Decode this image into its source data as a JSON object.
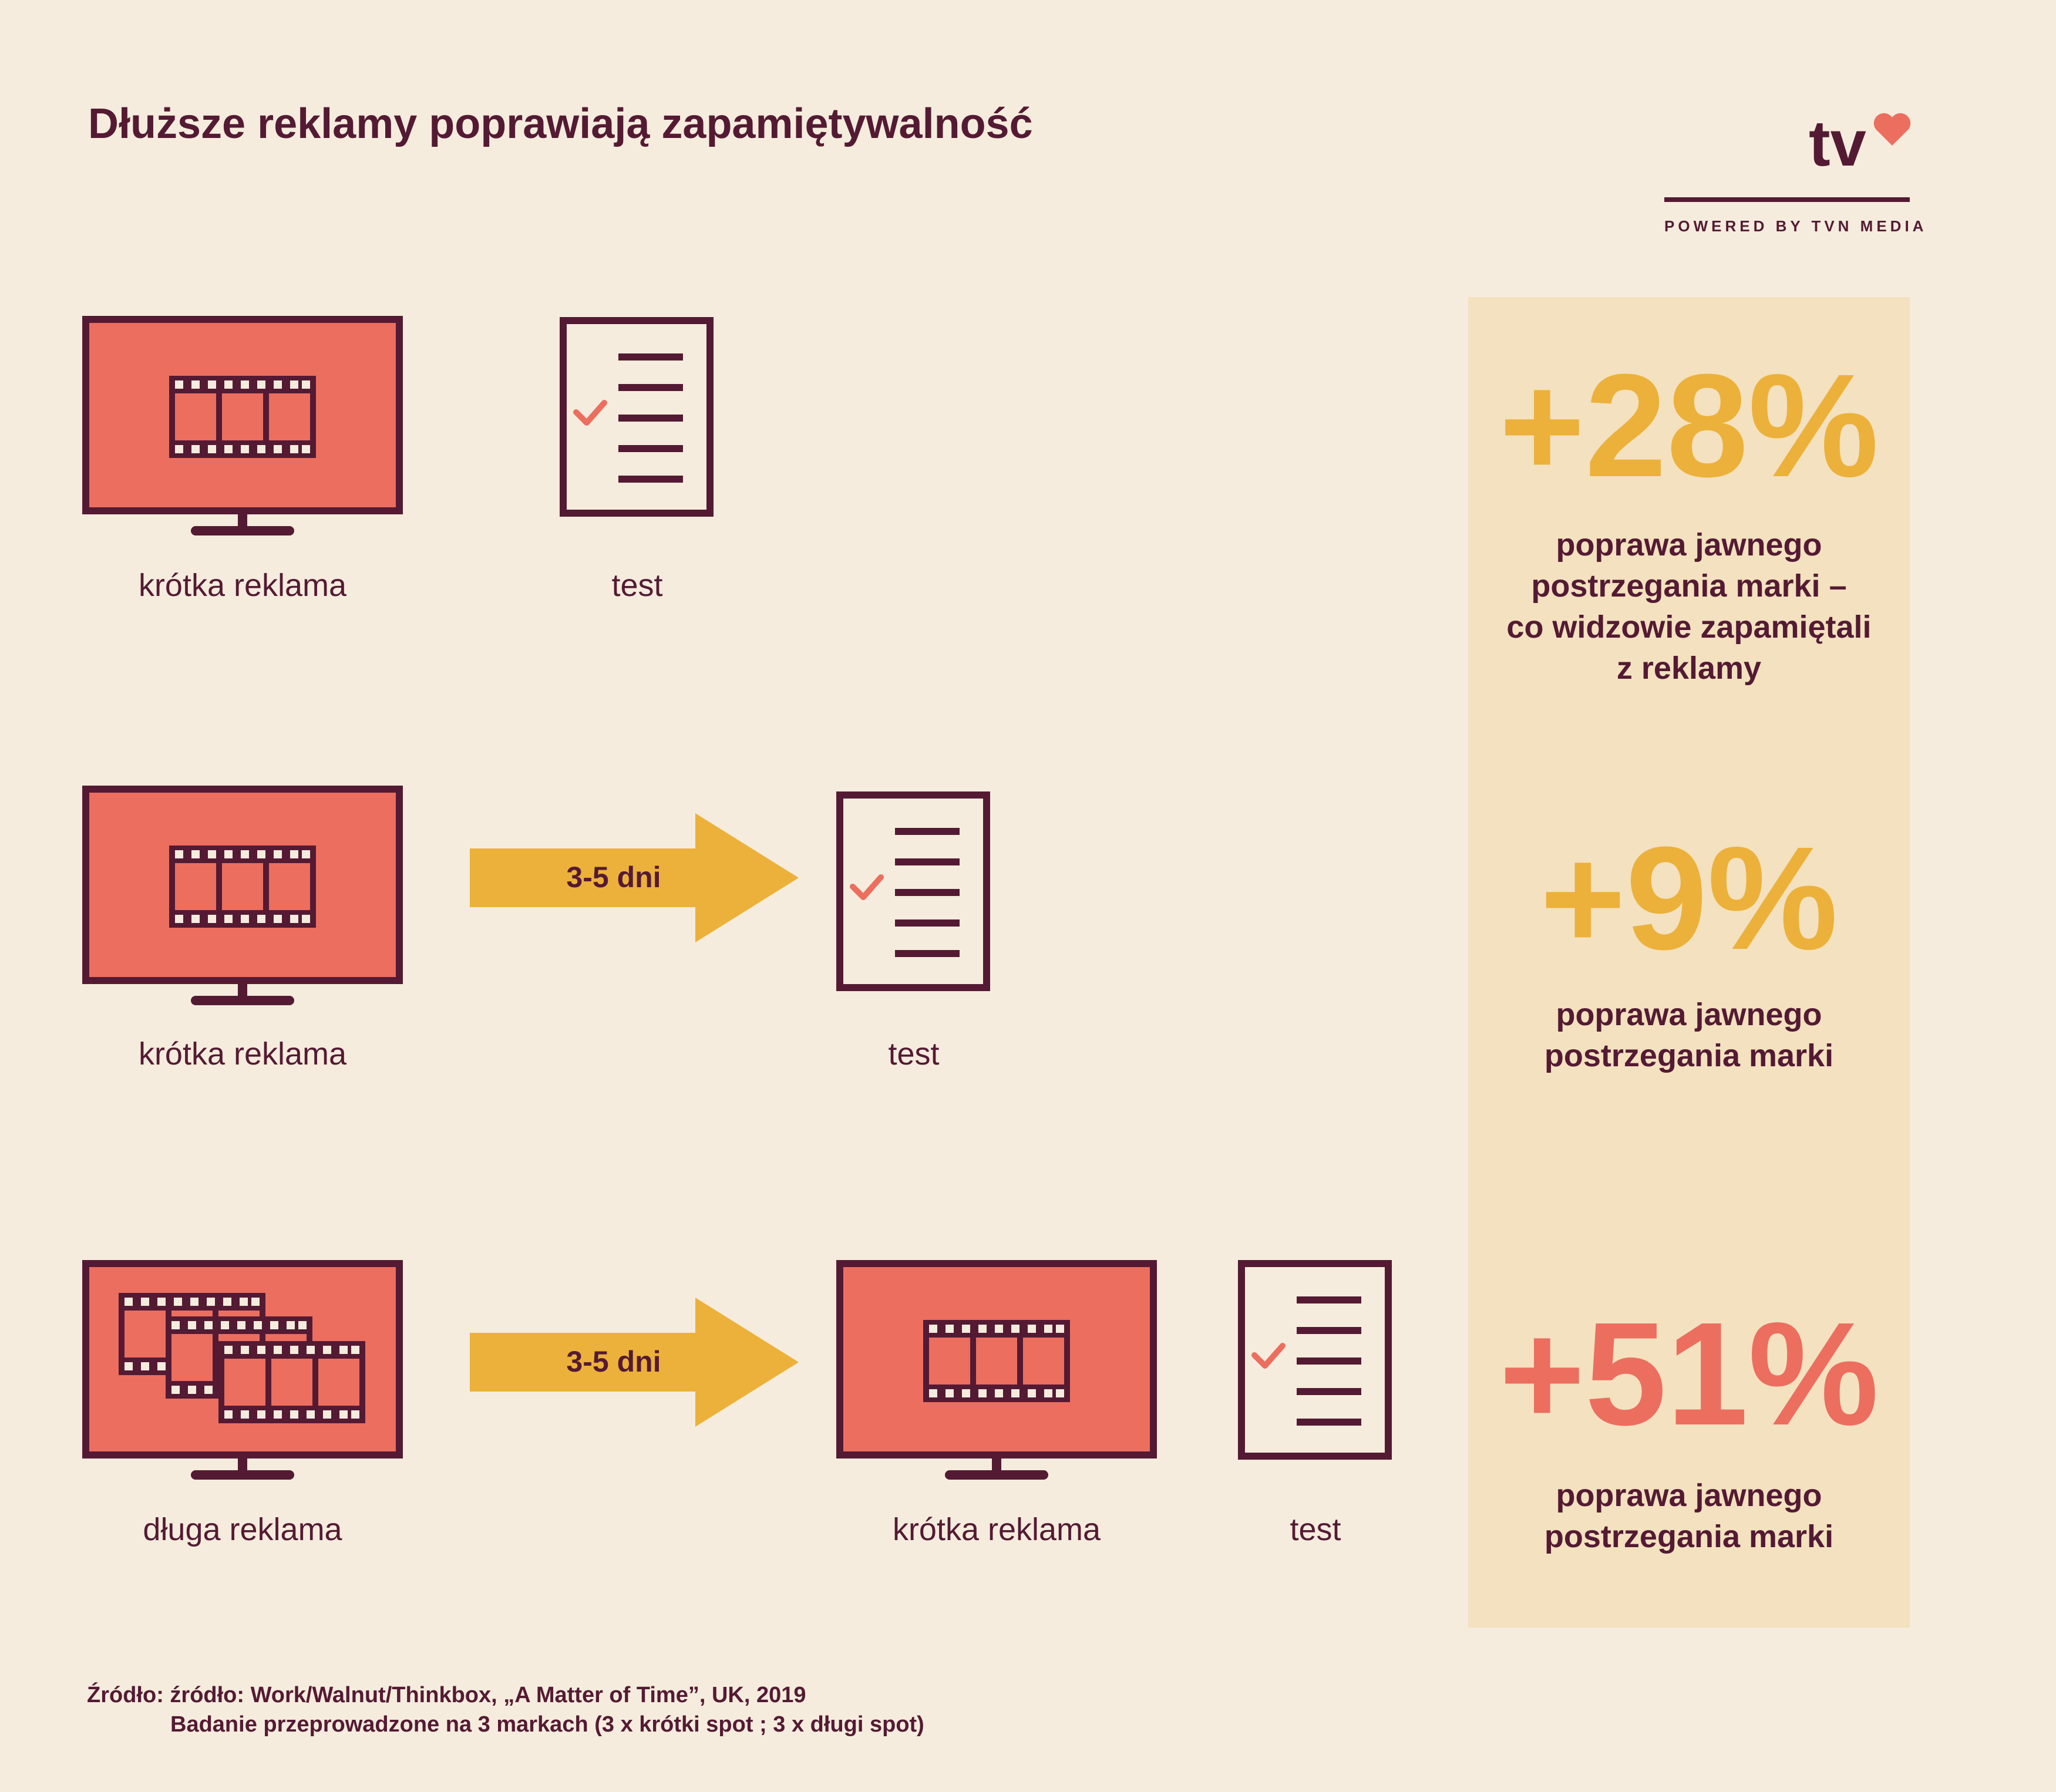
{
  "title": "Dłuższe reklamy poprawiają zapamiętywalność",
  "logo": {
    "text": "tv",
    "subtitle": "POWERED BY TVN MEDIA"
  },
  "rows": [
    {
      "items": [
        "krótka reklama",
        "test"
      ]
    },
    {
      "items": [
        "krótka reklama",
        "3-5 dni",
        "test"
      ]
    },
    {
      "items": [
        "długa reklama",
        "3-5 dni",
        "krótka reklama",
        "test"
      ]
    }
  ],
  "stats": [
    {
      "value": "+28%",
      "description": [
        "poprawa jawnego",
        "postrzegania marki –",
        "co widzowie zapamiętali",
        "z reklamy"
      ],
      "color": "#ecb13a"
    },
    {
      "value": "+9%",
      "description": [
        "poprawa jawnego",
        "postrzegania marki"
      ],
      "color": "#ecb13a"
    },
    {
      "value": "+51%",
      "description": [
        "poprawa jawnego",
        "postrzegania marki"
      ],
      "color": "#ec6e5f"
    }
  ],
  "source": {
    "line1": "Źródło: źródło: Work/Walnut/Thinkbox, „A Matter of Time”, UK, 2019",
    "line2": "Badanie przeprowadzone na 3 markach (3 x krótki spot ; 3 x długi spot)"
  },
  "colors": {
    "background": "#f5ecdd",
    "panel": "#f3e1bf",
    "dark": "#541a33",
    "coral": "#ec6e5f",
    "amber": "#ecb13a"
  },
  "icons": [
    "tv-icon",
    "film-strip-icon",
    "test-document-icon",
    "checkmark-icon",
    "arrow-icon",
    "heart-icon"
  ]
}
